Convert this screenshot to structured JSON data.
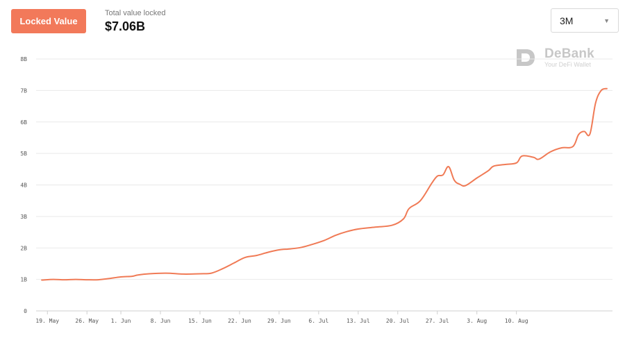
{
  "header": {
    "locked_value_button": "Locked Value",
    "tvl_label": "Total value locked",
    "tvl_value": "$7.06B",
    "range_selected": "3M"
  },
  "watermark": {
    "brand": "DeBank",
    "tagline": "Your DeFi Wallet"
  },
  "colors": {
    "accent": "#f2795a",
    "line": "#f07a55",
    "grid": "#e9e9e9"
  },
  "chart_data": {
    "type": "line",
    "title": "",
    "xlabel": "",
    "ylabel": "",
    "ylim": [
      0,
      8
    ],
    "y_ticks": [
      {
        "value": 0,
        "label": "0"
      },
      {
        "value": 1,
        "label": "1B"
      },
      {
        "value": 2,
        "label": "2B"
      },
      {
        "value": 3,
        "label": "3B"
      },
      {
        "value": 4,
        "label": "4B"
      },
      {
        "value": 5,
        "label": "5B"
      },
      {
        "value": 6,
        "label": "6B"
      },
      {
        "value": 7,
        "label": "7B"
      },
      {
        "value": 8,
        "label": "8B"
      }
    ],
    "x_ticks": [
      {
        "x": "2020-05-19",
        "label": "19. May"
      },
      {
        "x": "2020-05-26",
        "label": "26. May"
      },
      {
        "x": "2020-06-01",
        "label": "1. Jun"
      },
      {
        "x": "2020-06-08",
        "label": "8. Jun"
      },
      {
        "x": "2020-06-15",
        "label": "15. Jun"
      },
      {
        "x": "2020-06-22",
        "label": "22. Jun"
      },
      {
        "x": "2020-06-29",
        "label": "29. Jun"
      },
      {
        "x": "2020-07-06",
        "label": "6. Jul"
      },
      {
        "x": "2020-07-13",
        "label": "13. Jul"
      },
      {
        "x": "2020-07-20",
        "label": "20. Jul"
      },
      {
        "x": "2020-07-27",
        "label": "27. Jul"
      },
      {
        "x": "2020-08-03",
        "label": "3. Aug"
      },
      {
        "x": "2020-08-10",
        "label": "10. Aug"
      }
    ],
    "grid": true,
    "series": [
      {
        "points": [
          [
            "2020-05-18",
            0.98
          ],
          [
            "2020-05-20",
            1.0
          ],
          [
            "2020-05-22",
            0.99
          ],
          [
            "2020-05-24",
            1.0
          ],
          [
            "2020-05-26",
            0.99
          ],
          [
            "2020-05-28",
            0.99
          ],
          [
            "2020-05-30",
            1.03
          ],
          [
            "2020-06-01",
            1.08
          ],
          [
            "2020-06-03",
            1.1
          ],
          [
            "2020-06-04",
            1.14
          ],
          [
            "2020-06-06",
            1.18
          ],
          [
            "2020-06-09",
            1.2
          ],
          [
            "2020-06-12",
            1.17
          ],
          [
            "2020-06-15",
            1.18
          ],
          [
            "2020-06-17",
            1.2
          ],
          [
            "2020-06-19",
            1.34
          ],
          [
            "2020-06-21",
            1.52
          ],
          [
            "2020-06-23",
            1.7
          ],
          [
            "2020-06-25",
            1.76
          ],
          [
            "2020-06-27",
            1.86
          ],
          [
            "2020-06-29",
            1.94
          ],
          [
            "2020-07-01",
            1.97
          ],
          [
            "2020-07-03",
            2.02
          ],
          [
            "2020-07-05",
            2.12
          ],
          [
            "2020-07-07",
            2.24
          ],
          [
            "2020-07-09",
            2.4
          ],
          [
            "2020-07-11",
            2.52
          ],
          [
            "2020-07-13",
            2.6
          ],
          [
            "2020-07-16",
            2.66
          ],
          [
            "2020-07-19",
            2.72
          ],
          [
            "2020-07-21",
            2.92
          ],
          [
            "2020-07-22",
            3.25
          ],
          [
            "2020-07-24",
            3.5
          ],
          [
            "2020-07-26",
            4.05
          ],
          [
            "2020-07-27",
            4.28
          ],
          [
            "2020-07-28",
            4.32
          ],
          [
            "2020-07-29",
            4.58
          ],
          [
            "2020-07-30",
            4.15
          ],
          [
            "2020-07-31",
            4.02
          ],
          [
            "2020-08-01",
            3.98
          ],
          [
            "2020-08-03",
            4.22
          ],
          [
            "2020-08-05",
            4.45
          ],
          [
            "2020-08-06",
            4.6
          ],
          [
            "2020-08-08",
            4.65
          ],
          [
            "2020-08-10",
            4.7
          ],
          [
            "2020-08-11",
            4.92
          ],
          [
            "2020-08-13",
            4.88
          ],
          [
            "2020-08-14",
            4.82
          ],
          [
            "2020-08-16",
            5.05
          ],
          [
            "2020-08-18",
            5.18
          ],
          [
            "2020-08-20",
            5.22
          ],
          [
            "2020-08-21",
            5.6
          ],
          [
            "2020-08-22",
            5.7
          ],
          [
            "2020-08-23",
            5.62
          ],
          [
            "2020-08-24",
            6.6
          ],
          [
            "2020-08-25",
            7.0
          ],
          [
            "2020-08-26",
            7.06
          ]
        ]
      }
    ]
  }
}
